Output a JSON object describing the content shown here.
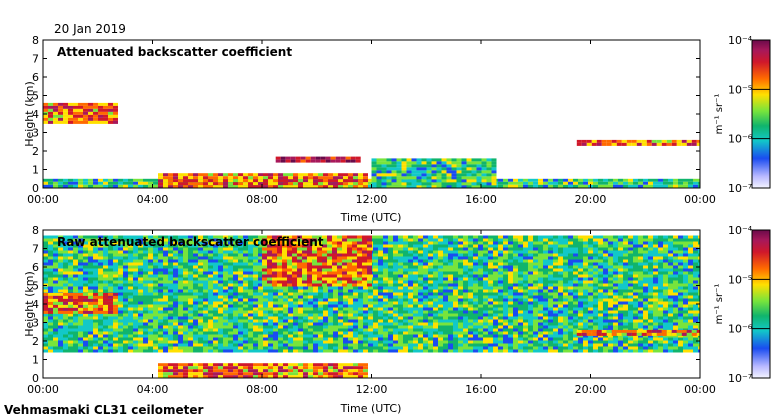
{
  "header": {
    "date": "20 Jan 2019"
  },
  "footer": {
    "instrument": "Vehmasmaki CL31 ceilometer"
  },
  "colorbar": {
    "unit_label": "m⁻¹ sr⁻¹",
    "tick_labels": [
      "10⁻⁴",
      "10⁻⁵",
      "10⁻⁶",
      "10⁻⁷"
    ],
    "colors": [
      "#6a0a4a",
      "#a8185a",
      "#d0182a",
      "#ff6a00",
      "#ffe000",
      "#78e43c",
      "#10b46c",
      "#12c8c8",
      "#1a4cf0",
      "#b8b8ff",
      "#f4f4ff"
    ]
  },
  "chart_data": [
    {
      "type": "heatmap",
      "title": "Attenuated backscatter coefficient",
      "xlabel": "Time (UTC)",
      "ylabel": "Height (km)",
      "xlim": [
        0,
        24
      ],
      "ylim": [
        0,
        8
      ],
      "x_ticks": [
        0,
        4,
        8,
        12,
        16,
        20,
        24
      ],
      "x_tick_labels": [
        "00:00",
        "04:00",
        "08:00",
        "12:00",
        "16:00",
        "20:00",
        "00:00"
      ],
      "y_ticks": [
        0,
        1,
        2,
        3,
        4,
        5,
        6,
        7,
        8
      ],
      "y_tick_labels": [
        "0",
        "1",
        "2",
        "3",
        "4",
        "5",
        "6",
        "7",
        "8"
      ],
      "features": [
        {
          "name": "elevated aerosol layer",
          "t_start": 0.0,
          "t_end": 2.7,
          "h_low": 3.6,
          "h_high": 4.6,
          "level": "1e-5"
        },
        {
          "name": "boundary layer",
          "t_start": 0.0,
          "t_end": 24.0,
          "h_low": 0.0,
          "h_high": 0.5,
          "level": "1e-6"
        },
        {
          "name": "low cloud",
          "t_start": 4.2,
          "t_end": 11.8,
          "h_low": 0.0,
          "h_high": 0.8,
          "level": "1e-5"
        },
        {
          "name": "cloud base",
          "t_start": 8.5,
          "t_end": 11.5,
          "h_low": 1.4,
          "h_high": 1.7,
          "level": "1e-4"
        },
        {
          "name": "cloud layer",
          "t_start": 12.0,
          "t_end": 16.5,
          "h_low": 0.0,
          "h_high": 1.6,
          "level": "1e-6"
        },
        {
          "name": "cloud base",
          "t_start": 19.5,
          "t_end": 24.0,
          "h_low": 2.3,
          "h_high": 2.6,
          "level": "1e-5"
        }
      ]
    },
    {
      "type": "heatmap",
      "title": "Raw attenuated backscatter coefficient",
      "xlabel": "Time (UTC)",
      "ylabel": "Height (km)",
      "xlim": [
        0,
        24
      ],
      "ylim": [
        0,
        8
      ],
      "x_ticks": [
        0,
        4,
        8,
        12,
        16,
        20,
        24
      ],
      "x_tick_labels": [
        "00:00",
        "04:00",
        "08:00",
        "12:00",
        "16:00",
        "20:00",
        "00:00"
      ],
      "y_ticks": [
        0,
        1,
        2,
        3,
        4,
        5,
        6,
        7,
        8
      ],
      "y_tick_labels": [
        "0",
        "1",
        "2",
        "3",
        "4",
        "5",
        "6",
        "7",
        "8"
      ],
      "features": [
        {
          "name": "noise",
          "t_start": 0.0,
          "t_end": 24.0,
          "h_low": 1.5,
          "h_high": 7.7,
          "level": "1e-6"
        },
        {
          "name": "enhanced noise",
          "t_start": 8.0,
          "t_end": 12.0,
          "h_low": 5.0,
          "h_high": 7.7,
          "level": "1e-5"
        },
        {
          "name": "elevated aerosol layer",
          "t_start": 0.0,
          "t_end": 2.7,
          "h_low": 3.6,
          "h_high": 4.6,
          "level": "1e-5"
        },
        {
          "name": "low cloud",
          "t_start": 4.2,
          "t_end": 11.8,
          "h_low": 0.0,
          "h_high": 0.8,
          "level": "1e-5"
        },
        {
          "name": "cloud base",
          "t_start": 19.5,
          "t_end": 24.0,
          "h_low": 2.3,
          "h_high": 2.6,
          "level": "1e-5"
        }
      ]
    }
  ]
}
